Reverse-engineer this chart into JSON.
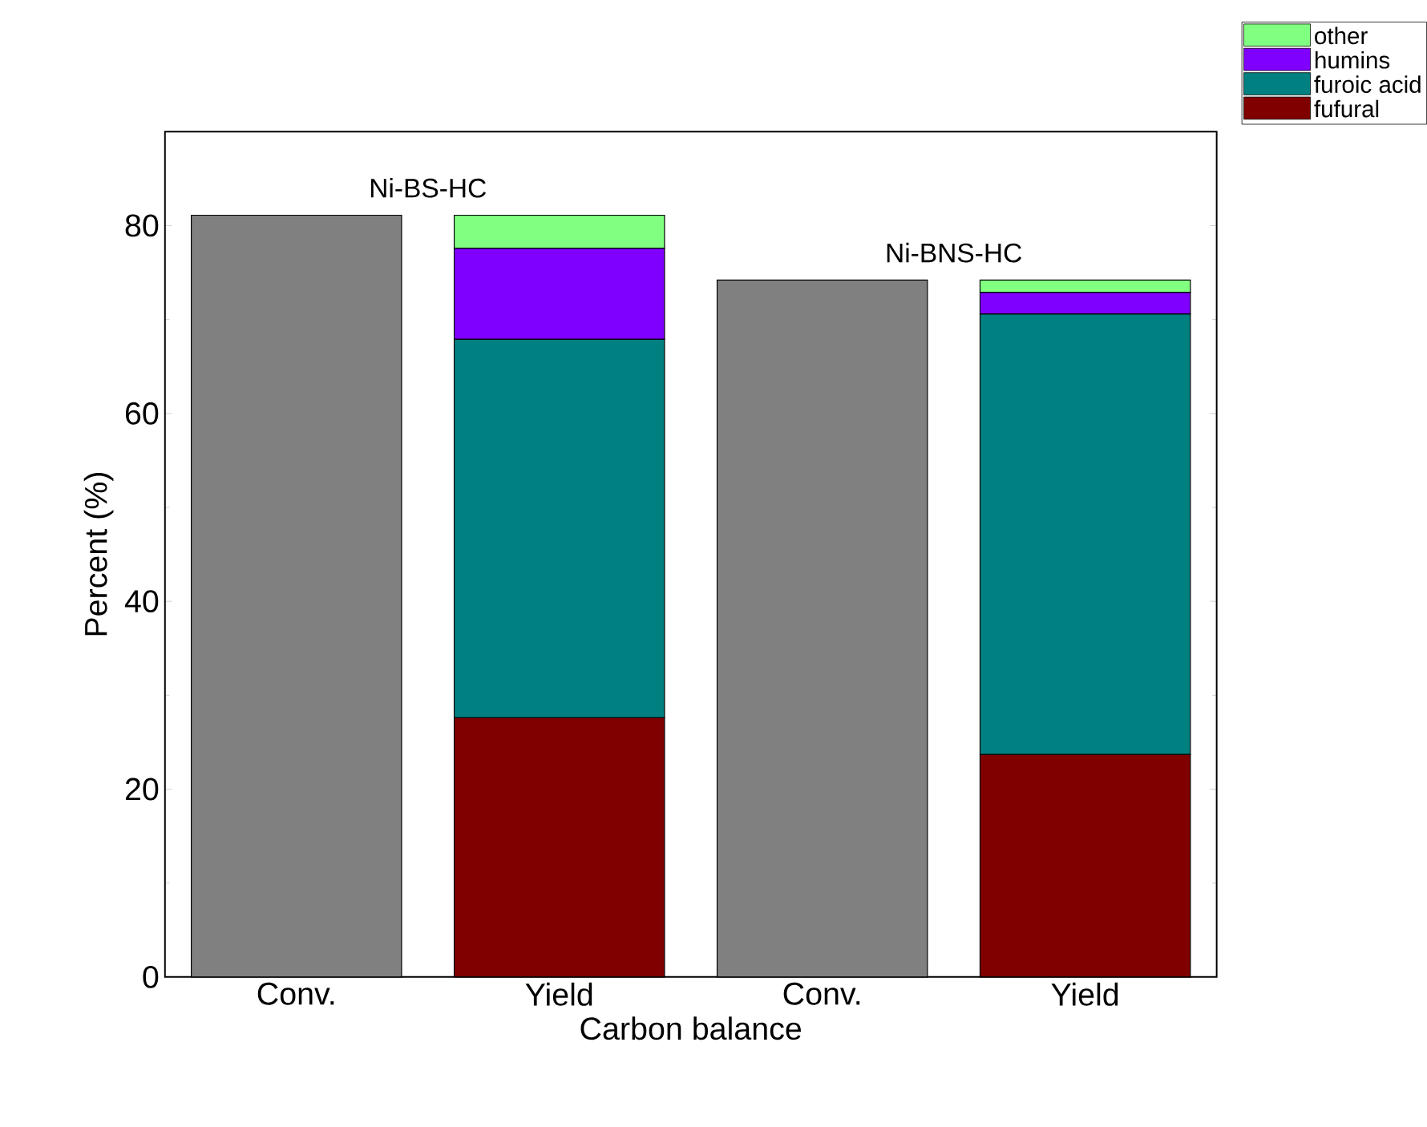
{
  "chart_data": {
    "type": "bar",
    "stacked": true,
    "xlabel": "Carbon balance",
    "ylabel": "Percent (%)",
    "categories": [
      "Conv.",
      "Yield",
      "Conv.",
      "Yield"
    ],
    "series": [
      {
        "color": "#808080",
        "values": [
          81.1,
          null,
          74.2,
          null
        ]
      },
      {
        "name": "fufural",
        "color": "#800000",
        "values": [
          null,
          27.6,
          null,
          23.7
        ]
      },
      {
        "name": "furoic acid",
        "color": "#008080",
        "values": [
          null,
          40.3,
          null,
          46.9
        ]
      },
      {
        "name": "humins",
        "color": "#8000ff",
        "values": [
          null,
          9.7,
          null,
          2.3
        ]
      },
      {
        "name": "other",
        "color": "#80ff80",
        "values": [
          null,
          3.5,
          null,
          1.3
        ]
      }
    ],
    "annotations": [
      "Ni-BS-HC",
      "Ni-BNS-HC"
    ],
    "ylim": [
      0,
      90
    ],
    "yticks": [
      0,
      20,
      40,
      60,
      80
    ],
    "legend": "top right",
    "grid": false
  }
}
